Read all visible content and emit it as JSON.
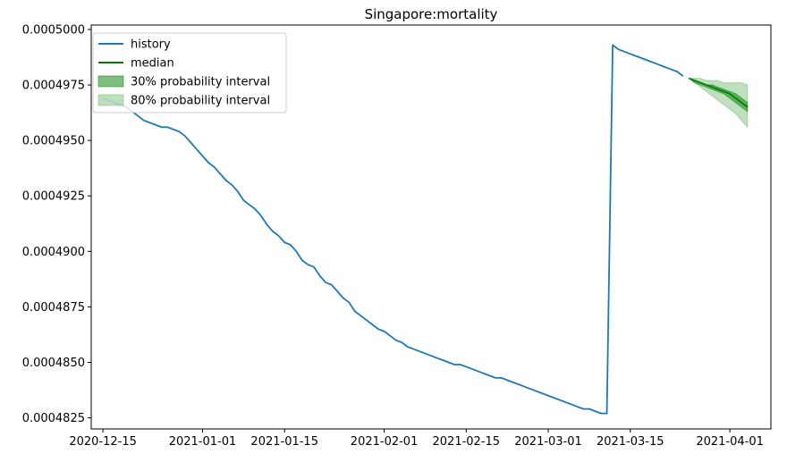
{
  "chart_data": {
    "type": "line",
    "title": "Singapore:mortality",
    "xlabel": "",
    "ylabel": "",
    "x_ticks": [
      "2020-12-15",
      "2021-01-01",
      "2021-01-15",
      "2021-02-01",
      "2021-02-15",
      "2021-03-01",
      "2021-03-15",
      "2021-04-01"
    ],
    "y_ticks": [
      "0.0004825",
      "0.0004850",
      "0.0004875",
      "0.0004900",
      "0.0004925",
      "0.0004950",
      "0.0004975",
      "0.0005000"
    ],
    "xlim": [
      "2020-12-13",
      "2021-04-08"
    ],
    "ylim": [
      0.000482,
      0.0005002
    ],
    "grid": false,
    "legend_position": "top-left",
    "colors": {
      "history": "#1f77b4",
      "median": "#008000",
      "interval_30": "#008000",
      "interval_80": "#008000"
    },
    "legend": [
      {
        "label": "history",
        "kind": "line",
        "color": "#1f77b4"
      },
      {
        "label": "median",
        "kind": "line",
        "color": "#008000"
      },
      {
        "label": "30% probability interval",
        "kind": "patch",
        "color": "#008000",
        "opacity": 0.5
      },
      {
        "label": "80% probability interval",
        "kind": "patch",
        "color": "#008000",
        "opacity": 0.25
      }
    ],
    "series": [
      {
        "name": "history",
        "points": [
          [
            "2020-12-15",
            0.0004969
          ],
          [
            "2020-12-16",
            0.0004968
          ],
          [
            "2020-12-17",
            0.0004967
          ],
          [
            "2020-12-18",
            0.0004966
          ],
          [
            "2020-12-19",
            0.0004965
          ],
          [
            "2020-12-20",
            0.0004963
          ],
          [
            "2020-12-21",
            0.0004961
          ],
          [
            "2020-12-22",
            0.0004959
          ],
          [
            "2020-12-23",
            0.0004958
          ],
          [
            "2020-12-24",
            0.0004957
          ],
          [
            "2020-12-25",
            0.0004956
          ],
          [
            "2020-12-26",
            0.0004956
          ],
          [
            "2020-12-27",
            0.0004955
          ],
          [
            "2020-12-28",
            0.0004954
          ],
          [
            "2020-12-29",
            0.0004952
          ],
          [
            "2020-12-30",
            0.0004949
          ],
          [
            "2020-12-31",
            0.0004946
          ],
          [
            "2021-01-01",
            0.0004943
          ],
          [
            "2021-01-02",
            0.000494
          ],
          [
            "2021-01-03",
            0.0004938
          ],
          [
            "2021-01-04",
            0.0004935
          ],
          [
            "2021-01-05",
            0.0004932
          ],
          [
            "2021-01-06",
            0.000493
          ],
          [
            "2021-01-07",
            0.0004927
          ],
          [
            "2021-01-08",
            0.0004923
          ],
          [
            "2021-01-09",
            0.0004921
          ],
          [
            "2021-01-10",
            0.0004919
          ],
          [
            "2021-01-11",
            0.0004916
          ],
          [
            "2021-01-12",
            0.0004912
          ],
          [
            "2021-01-13",
            0.0004909
          ],
          [
            "2021-01-14",
            0.0004907
          ],
          [
            "2021-01-15",
            0.0004904
          ],
          [
            "2021-01-16",
            0.0004903
          ],
          [
            "2021-01-17",
            0.00049
          ],
          [
            "2021-01-18",
            0.0004896
          ],
          [
            "2021-01-19",
            0.0004894
          ],
          [
            "2021-01-20",
            0.0004893
          ],
          [
            "2021-01-21",
            0.0004889
          ],
          [
            "2021-01-22",
            0.0004886
          ],
          [
            "2021-01-23",
            0.0004885
          ],
          [
            "2021-01-24",
            0.0004882
          ],
          [
            "2021-01-25",
            0.0004879
          ],
          [
            "2021-01-26",
            0.0004877
          ],
          [
            "2021-01-27",
            0.0004873
          ],
          [
            "2021-01-28",
            0.0004871
          ],
          [
            "2021-01-29",
            0.0004869
          ],
          [
            "2021-01-30",
            0.0004867
          ],
          [
            "2021-01-31",
            0.0004865
          ],
          [
            "2021-02-01",
            0.0004864
          ],
          [
            "2021-02-02",
            0.0004862
          ],
          [
            "2021-02-03",
            0.000486
          ],
          [
            "2021-02-04",
            0.0004859
          ],
          [
            "2021-02-05",
            0.0004857
          ],
          [
            "2021-02-06",
            0.0004856
          ],
          [
            "2021-02-07",
            0.0004855
          ],
          [
            "2021-02-08",
            0.0004854
          ],
          [
            "2021-02-09",
            0.0004853
          ],
          [
            "2021-02-10",
            0.0004852
          ],
          [
            "2021-02-11",
            0.0004851
          ],
          [
            "2021-02-12",
            0.000485
          ],
          [
            "2021-02-13",
            0.0004849
          ],
          [
            "2021-02-14",
            0.0004849
          ],
          [
            "2021-02-15",
            0.0004848
          ],
          [
            "2021-02-16",
            0.0004847
          ],
          [
            "2021-02-17",
            0.0004846
          ],
          [
            "2021-02-18",
            0.0004845
          ],
          [
            "2021-02-19",
            0.0004844
          ],
          [
            "2021-02-20",
            0.0004843
          ],
          [
            "2021-02-21",
            0.0004843
          ],
          [
            "2021-02-22",
            0.0004842
          ],
          [
            "2021-02-23",
            0.0004841
          ],
          [
            "2021-02-24",
            0.000484
          ],
          [
            "2021-02-25",
            0.0004839
          ],
          [
            "2021-02-26",
            0.0004838
          ],
          [
            "2021-02-27",
            0.0004837
          ],
          [
            "2021-02-28",
            0.0004836
          ],
          [
            "2021-03-01",
            0.0004835
          ],
          [
            "2021-03-02",
            0.0004834
          ],
          [
            "2021-03-03",
            0.0004833
          ],
          [
            "2021-03-04",
            0.0004832
          ],
          [
            "2021-03-05",
            0.0004831
          ],
          [
            "2021-03-06",
            0.000483
          ],
          [
            "2021-03-07",
            0.0004829
          ],
          [
            "2021-03-08",
            0.0004829
          ],
          [
            "2021-03-09",
            0.0004828
          ],
          [
            "2021-03-10",
            0.0004827
          ],
          [
            "2021-03-11",
            0.0004827
          ],
          [
            "2021-03-12",
            0.0004993
          ],
          [
            "2021-03-13",
            0.0004991
          ],
          [
            "2021-03-14",
            0.000499
          ],
          [
            "2021-03-15",
            0.0004989
          ],
          [
            "2021-03-16",
            0.0004988
          ],
          [
            "2021-03-17",
            0.0004987
          ],
          [
            "2021-03-18",
            0.0004986
          ],
          [
            "2021-03-19",
            0.0004985
          ],
          [
            "2021-03-20",
            0.0004984
          ],
          [
            "2021-03-21",
            0.0004983
          ],
          [
            "2021-03-22",
            0.0004982
          ],
          [
            "2021-03-23",
            0.0004981
          ],
          [
            "2021-03-24",
            0.0004979
          ]
        ]
      },
      {
        "name": "median",
        "points": [
          [
            "2021-03-25",
            0.0004978
          ],
          [
            "2021-03-26",
            0.0004977
          ],
          [
            "2021-03-27",
            0.0004976
          ],
          [
            "2021-03-28",
            0.0004975
          ],
          [
            "2021-03-29",
            0.0004974
          ],
          [
            "2021-03-30",
            0.0004973
          ],
          [
            "2021-03-31",
            0.0004972
          ],
          [
            "2021-04-01",
            0.0004971
          ],
          [
            "2021-04-02",
            0.0004969
          ],
          [
            "2021-04-03",
            0.0004967
          ],
          [
            "2021-04-04",
            0.0004965
          ]
        ]
      }
    ],
    "intervals": [
      {
        "name": "80% probability interval",
        "x": [
          "2021-03-25",
          "2021-03-26",
          "2021-03-27",
          "2021-03-28",
          "2021-03-29",
          "2021-03-30",
          "2021-03-31",
          "2021-04-01",
          "2021-04-02",
          "2021-04-03",
          "2021-04-04"
        ],
        "lower": [
          0.0004978,
          0.0004976,
          0.0004974,
          0.0004972,
          0.000497,
          0.0004968,
          0.0004966,
          0.0004964,
          0.0004962,
          0.0004959,
          0.0004956
        ],
        "upper": [
          0.0004978,
          0.0004978,
          0.0004978,
          0.0004977,
          0.0004977,
          0.0004977,
          0.0004976,
          0.0004976,
          0.0004976,
          0.0004976,
          0.0004975
        ]
      },
      {
        "name": "30% probability interval",
        "x": [
          "2021-03-25",
          "2021-03-26",
          "2021-03-27",
          "2021-03-28",
          "2021-03-29",
          "2021-03-30",
          "2021-03-31",
          "2021-04-01",
          "2021-04-02",
          "2021-04-03",
          "2021-04-04"
        ],
        "lower": [
          0.0004978,
          0.0004976,
          0.0004975,
          0.0004974,
          0.0004973,
          0.0004972,
          0.0004971,
          0.0004969,
          0.0004967,
          0.0004965,
          0.0004963
        ],
        "upper": [
          0.0004978,
          0.0004977,
          0.0004976,
          0.0004975,
          0.0004975,
          0.0004974,
          0.0004973,
          0.0004972,
          0.0004971,
          0.0004969,
          0.0004967
        ]
      }
    ]
  }
}
